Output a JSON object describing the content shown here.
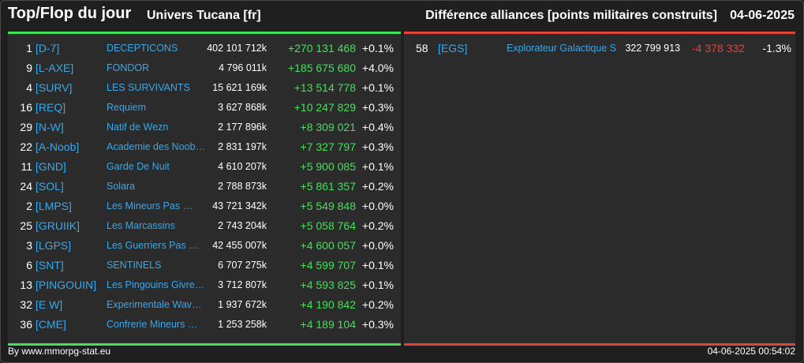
{
  "header": {
    "title": "Top/Flop du jour",
    "universe": "Univers Tucana [fr]",
    "subtitle": "Différence alliances [points militaires construits]",
    "date": "04-06-2025"
  },
  "colors": {
    "positive": "#43e05a",
    "negative": "#e0443c",
    "link": "#3aa7e8"
  },
  "top": [
    {
      "rank": "1",
      "tag": "[D-7]",
      "name": "DECEPTICONS",
      "points": "402 101 712k",
      "diff": "+270 131 468",
      "pct": "+0.1%"
    },
    {
      "rank": "9",
      "tag": "[L-AXE]",
      "name": "FONDOR",
      "points": "4 796 011k",
      "diff": "+185 675 680",
      "pct": "+4.0%"
    },
    {
      "rank": "4",
      "tag": "[SURV]",
      "name": "LES SURVIVANTS",
      "points": "15 621 169k",
      "diff": "+13 514 778",
      "pct": "+0.1%"
    },
    {
      "rank": "16",
      "tag": "[REQ]",
      "name": "Requiem",
      "points": "3 627 868k",
      "diff": "+10 247 829",
      "pct": "+0.3%"
    },
    {
      "rank": "29",
      "tag": "[N-W]",
      "name": "Natif de Wezn",
      "points": "2 177 896k",
      "diff": "+8 309 021",
      "pct": "+0.4%"
    },
    {
      "rank": "22",
      "tag": "[A-Noob]",
      "name": "Academie des Noob…",
      "points": "2 831 197k",
      "diff": "+7 327 797",
      "pct": "+0.3%"
    },
    {
      "rank": "11",
      "tag": "[GND]",
      "name": "Garde De Nuit",
      "points": "4 610 207k",
      "diff": "+5 900 085",
      "pct": "+0.1%"
    },
    {
      "rank": "24",
      "tag": "[SOL]",
      "name": "Solara",
      "points": "2 788 873k",
      "diff": "+5 861 357",
      "pct": "+0.2%"
    },
    {
      "rank": "2",
      "tag": "[LMPS]",
      "name": "Les Mineurs Pas …",
      "points": "43 721 342k",
      "diff": "+5 549 848",
      "pct": "+0.0%"
    },
    {
      "rank": "25",
      "tag": "[GRUIIK]",
      "name": "Les Marcassins",
      "points": "2 743 204k",
      "diff": "+5 058 764",
      "pct": "+0.2%"
    },
    {
      "rank": "3",
      "tag": "[LGPS]",
      "name": "Les Guerriers Pas …",
      "points": "42 455 007k",
      "diff": "+4 600 057",
      "pct": "+0.0%"
    },
    {
      "rank": "6",
      "tag": "[SNT]",
      "name": "SENTINELS",
      "points": "6 707 275k",
      "diff": "+4 599 707",
      "pct": "+0.1%"
    },
    {
      "rank": "13",
      "tag": "[PINGOUIN]",
      "name": "Les Pingouins Givre…",
      "points": "3 712 807k",
      "diff": "+4 593 825",
      "pct": "+0.1%"
    },
    {
      "rank": "32",
      "tag": "[E W]",
      "name": "Experimentale Wav…",
      "points": "1 937 672k",
      "diff": "+4 190 842",
      "pct": "+0.2%"
    },
    {
      "rank": "36",
      "tag": "[CME]",
      "name": "Confrerie Mineurs …",
      "points": "1 253 258k",
      "diff": "+4 189 104",
      "pct": "+0.3%"
    }
  ],
  "flop": [
    {
      "rank": "58",
      "tag": "[EGS]",
      "name": "Explorateur Galactique S",
      "points": "322 799 913",
      "diff": "-4 378 332",
      "pct": "-1.3%"
    }
  ],
  "footer": {
    "source": "By www.mmorpg-stat.eu",
    "timestamp": "04-06-2025 00:54:02"
  }
}
